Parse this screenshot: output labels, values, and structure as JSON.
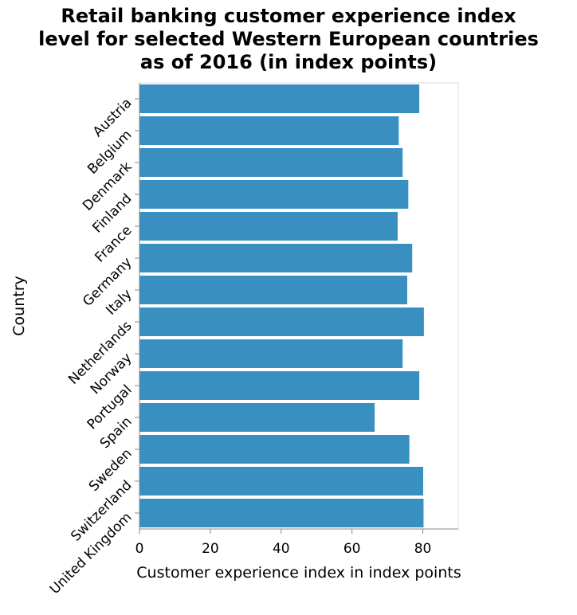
{
  "chart_data": {
    "type": "bar",
    "orientation": "horizontal",
    "title_lines": [
      "Retail banking customer experience index",
      "level for selected Western European countries",
      "as of 2016 (in index points)"
    ],
    "xlabel": "Customer experience index in index points",
    "ylabel": "Country",
    "xlim": [
      0,
      90
    ],
    "xticks": [
      0,
      20,
      40,
      60,
      80
    ],
    "grid": false,
    "bar_color": "#3a8fc1",
    "categories": [
      "Austria",
      "Belgium",
      "Denmark",
      "Finland",
      "France",
      "Germany",
      "Italy",
      "Netherlands",
      "Norway",
      "Portugal",
      "Spain",
      "Sweden",
      "Switzerland",
      "United Kingdom"
    ],
    "values": [
      79,
      73.2,
      74.3,
      75.9,
      72.9,
      77,
      75.6,
      80.3,
      74.3,
      79,
      66.4,
      76.2,
      80.1,
      80.2
    ]
  }
}
